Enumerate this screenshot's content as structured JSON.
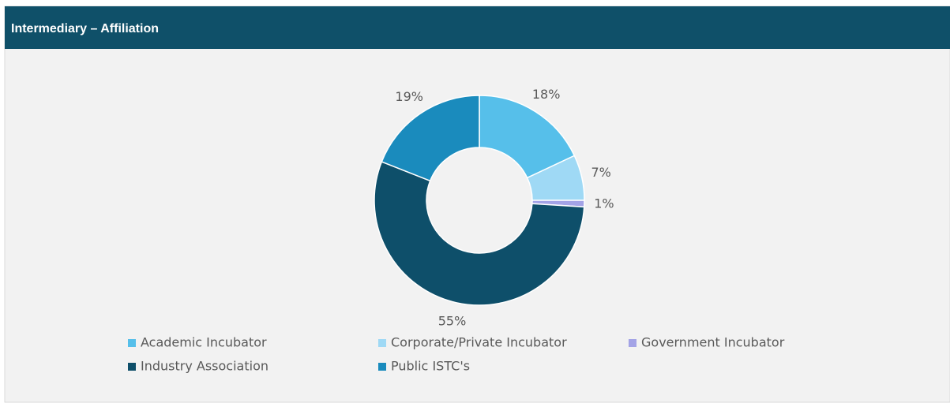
{
  "chart_data": {
    "type": "pie",
    "title": "Intermediary – Affiliation",
    "categories": [
      "Academic Incubator",
      "Corporate/Private Incubator",
      "Government Incubator",
      "Industry Association",
      "Public ISTC's"
    ],
    "values": [
      18,
      7,
      1,
      55,
      19
    ],
    "value_labels": [
      "18%",
      "7%",
      "1%",
      "55%",
      "19%"
    ],
    "colors": [
      "#56bfea",
      "#9fd9f5",
      "#a3a3e6",
      "#0e4f6a",
      "#1a8bbd"
    ]
  }
}
